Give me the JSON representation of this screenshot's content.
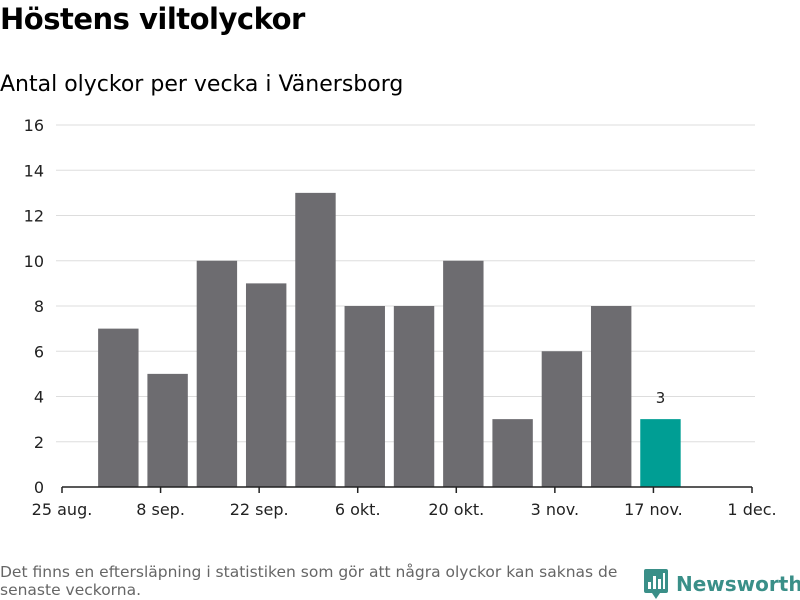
{
  "header": {
    "title": "Höstens viltolyckor",
    "subtitle": "Antal olyckor per vecka i Vänersborg"
  },
  "footer": {
    "note": "Det finns en eftersläpning i statistiken som gör att några olyckor kan saknas de senaste veckorna.",
    "brand": "Newsworthy"
  },
  "colors": {
    "bar": "#6d6c70",
    "highlight": "#009e94",
    "grid": "#dddddd",
    "axis": "#222222",
    "brand": "#3a8f88"
  },
  "chart_data": {
    "type": "bar",
    "title": "Höstens viltolyckor",
    "subtitle": "Antal olyckor per vecka i Vänersborg",
    "xlabel": "",
    "ylabel": "",
    "ylim": [
      0,
      16
    ],
    "yticks": [
      0,
      2,
      4,
      6,
      8,
      10,
      12,
      14,
      16
    ],
    "x_range": [
      "2019-08-25",
      "2019-12-01"
    ],
    "xticks": [
      {
        "date": "2019-08-25",
        "label": "25 aug."
      },
      {
        "date": "2019-09-08",
        "label": "8 sep."
      },
      {
        "date": "2019-09-22",
        "label": "22 sep."
      },
      {
        "date": "2019-10-06",
        "label": "6 okt."
      },
      {
        "date": "2019-10-20",
        "label": "20 okt."
      },
      {
        "date": "2019-11-03",
        "label": "3 nov."
      },
      {
        "date": "2019-11-17",
        "label": "17 nov."
      },
      {
        "date": "2019-12-01",
        "label": "1 dec."
      }
    ],
    "weeks": [
      "2019-09-02",
      "2019-09-09",
      "2019-09-16",
      "2019-09-23",
      "2019-09-30",
      "2019-10-07",
      "2019-10-14",
      "2019-10-21",
      "2019-10-28",
      "2019-11-04",
      "2019-11-11",
      "2019-11-18"
    ],
    "values": [
      7,
      5,
      10,
      9,
      13,
      8,
      8,
      10,
      3,
      6,
      8,
      3
    ],
    "highlight_last": true,
    "data_labels": [
      {
        "week": "2019-11-18",
        "label": "3"
      }
    ],
    "grid": true,
    "legend": "none"
  }
}
